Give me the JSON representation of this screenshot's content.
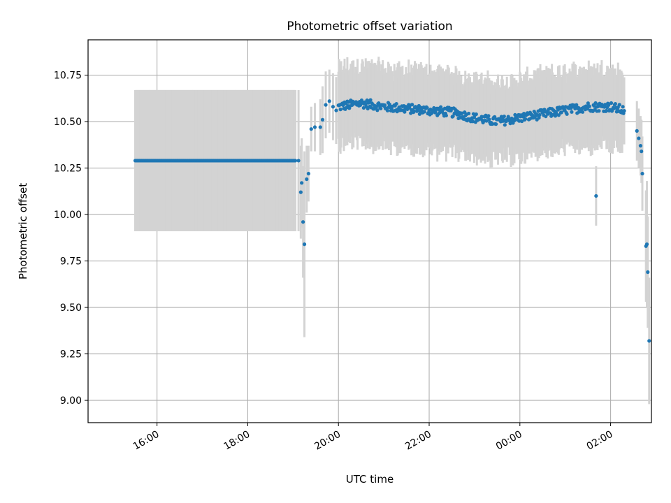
{
  "chart_data": {
    "type": "scatter",
    "title": "Photometric offset variation",
    "xlabel": "UTC time",
    "ylabel": "Photometric offset",
    "x_unit": "hours since 15:00 UTC",
    "xlim": [
      -0.52,
      11.9
    ],
    "ylim": [
      8.88,
      10.94
    ],
    "grid": true,
    "x_ticks": [
      {
        "value": 1,
        "label": "16:00"
      },
      {
        "value": 3,
        "label": "18:00"
      },
      {
        "value": 5,
        "label": "20:00"
      },
      {
        "value": 7,
        "label": "22:00"
      },
      {
        "value": 9,
        "label": "00:00"
      },
      {
        "value": 11,
        "label": "02:00"
      }
    ],
    "y_ticks": [
      {
        "value": 9.0,
        "label": "9.00"
      },
      {
        "value": 9.25,
        "label": "9.25"
      },
      {
        "value": 9.5,
        "label": "9.50"
      },
      {
        "value": 9.75,
        "label": "9.75"
      },
      {
        "value": 10.0,
        "label": "10.00"
      },
      {
        "value": 10.25,
        "label": "10.25"
      },
      {
        "value": 10.5,
        "label": "10.50"
      },
      {
        "value": 10.75,
        "label": "10.75"
      }
    ],
    "colors": {
      "points": "#1f77b4",
      "errorbars": "#d3d3d3",
      "grid": "#b0b0b0",
      "axes": "#000000"
    },
    "segments": [
      {
        "name": "fixed offset interval",
        "x_start": 0.52,
        "x_end": 4.05,
        "n": 150,
        "y": 10.29,
        "err": 0.38
      },
      {
        "name": "night variable",
        "knots": [
          [
            5.0,
            10.58
          ],
          [
            5.5,
            10.6
          ],
          [
            6.0,
            10.58
          ],
          [
            6.5,
            10.57
          ],
          [
            7.0,
            10.56
          ],
          [
            7.5,
            10.55
          ],
          [
            8.0,
            10.52
          ],
          [
            8.5,
            10.5
          ],
          [
            9.0,
            10.52
          ],
          [
            9.5,
            10.54
          ],
          [
            10.0,
            10.56
          ],
          [
            10.5,
            10.58
          ],
          [
            11.0,
            10.58
          ],
          [
            11.3,
            10.56
          ]
        ],
        "x_start": 5.0,
        "x_end": 11.3,
        "n": 420,
        "err": 0.2,
        "noise": 0.025
      }
    ],
    "points": [
      {
        "x": 4.12,
        "y": 10.29,
        "err": 0.38
      },
      {
        "x": 4.17,
        "y": 10.12,
        "err": 0.25
      },
      {
        "x": 4.19,
        "y": 10.17,
        "err": 0.24
      },
      {
        "x": 4.22,
        "y": 9.96,
        "err": 0.3
      },
      {
        "x": 4.25,
        "y": 9.84,
        "err": 0.5
      },
      {
        "x": 4.3,
        "y": 10.19,
        "err": 0.18
      },
      {
        "x": 4.34,
        "y": 10.22,
        "err": 0.15
      },
      {
        "x": 4.4,
        "y": 10.46,
        "err": 0.12
      },
      {
        "x": 4.48,
        "y": 10.47,
        "err": 0.13
      },
      {
        "x": 4.6,
        "y": 10.47,
        "err": 0.15
      },
      {
        "x": 4.65,
        "y": 10.51,
        "err": 0.18
      },
      {
        "x": 4.72,
        "y": 10.59,
        "err": 0.18
      },
      {
        "x": 4.8,
        "y": 10.61,
        "err": 0.17
      },
      {
        "x": 4.88,
        "y": 10.58,
        "err": 0.18
      },
      {
        "x": 4.95,
        "y": 10.56,
        "err": 0.18
      },
      {
        "x": 10.68,
        "y": 10.1,
        "err": 0.16
      },
      {
        "x": 11.58,
        "y": 10.45,
        "err": 0.16
      },
      {
        "x": 11.62,
        "y": 10.41,
        "err": 0.16
      },
      {
        "x": 11.66,
        "y": 10.37,
        "err": 0.16
      },
      {
        "x": 11.68,
        "y": 10.34,
        "err": 0.17
      },
      {
        "x": 11.7,
        "y": 10.22,
        "err": 0.2
      },
      {
        "x": 11.78,
        "y": 9.83,
        "err": 0.3
      },
      {
        "x": 11.8,
        "y": 9.84,
        "err": 0.34
      },
      {
        "x": 11.82,
        "y": 9.69,
        "err": 0.3
      },
      {
        "x": 11.85,
        "y": 9.32,
        "err": 0.34
      }
    ]
  }
}
